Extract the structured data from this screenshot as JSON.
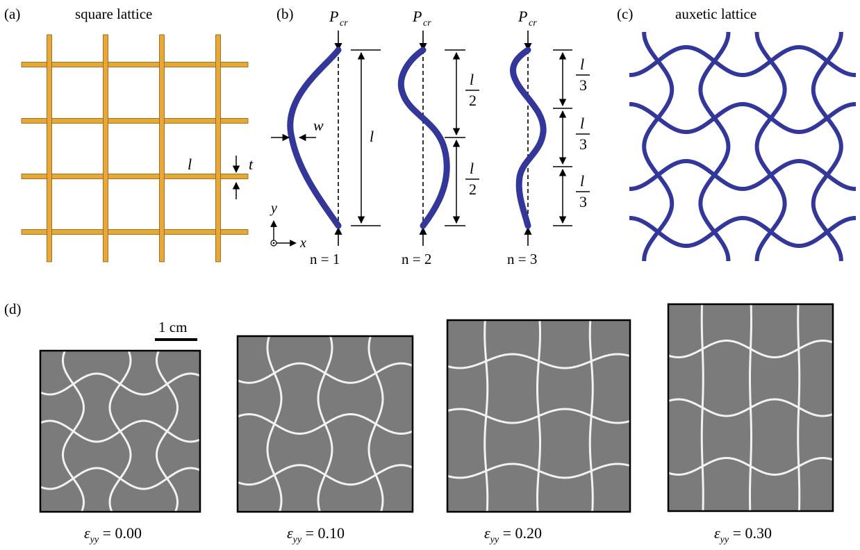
{
  "panels": {
    "a": {
      "label": "(a)",
      "title": "square lattice",
      "length_symbol": "l",
      "thickness_symbol": "t"
    },
    "b": {
      "label": "(b)",
      "load_symbol": "P",
      "load_subscript": "cr",
      "width_symbol": "w",
      "axis_y": "y",
      "axis_x": "x",
      "length_symbol": "l",
      "modes": [
        {
          "n_text": "n = 1",
          "segments": [
            "l"
          ]
        },
        {
          "n_text": "n = 2",
          "segments": [
            "l/2",
            "l/2"
          ],
          "num": "l",
          "den": "2"
        },
        {
          "n_text": "n = 3",
          "segments": [
            "l/3",
            "l/3",
            "l/3"
          ],
          "num": "l",
          "den": "3"
        }
      ]
    },
    "c": {
      "label": "(c)",
      "title": "auxetic lattice"
    },
    "d": {
      "label": "(d)",
      "scale_bar": "1 cm",
      "strain_symbol": "ε",
      "strain_subscript": "yy",
      "samples": [
        {
          "strain": "0.00"
        },
        {
          "strain": "0.10"
        },
        {
          "strain": "0.20"
        },
        {
          "strain": "0.30"
        }
      ]
    }
  },
  "colors": {
    "square_lattice": "#E8A838",
    "square_lattice_edge": "#8a5a10",
    "auxetic": "#34379a",
    "photo_bg": "#7b7b7b",
    "photo_line": "#f2f2f2"
  }
}
